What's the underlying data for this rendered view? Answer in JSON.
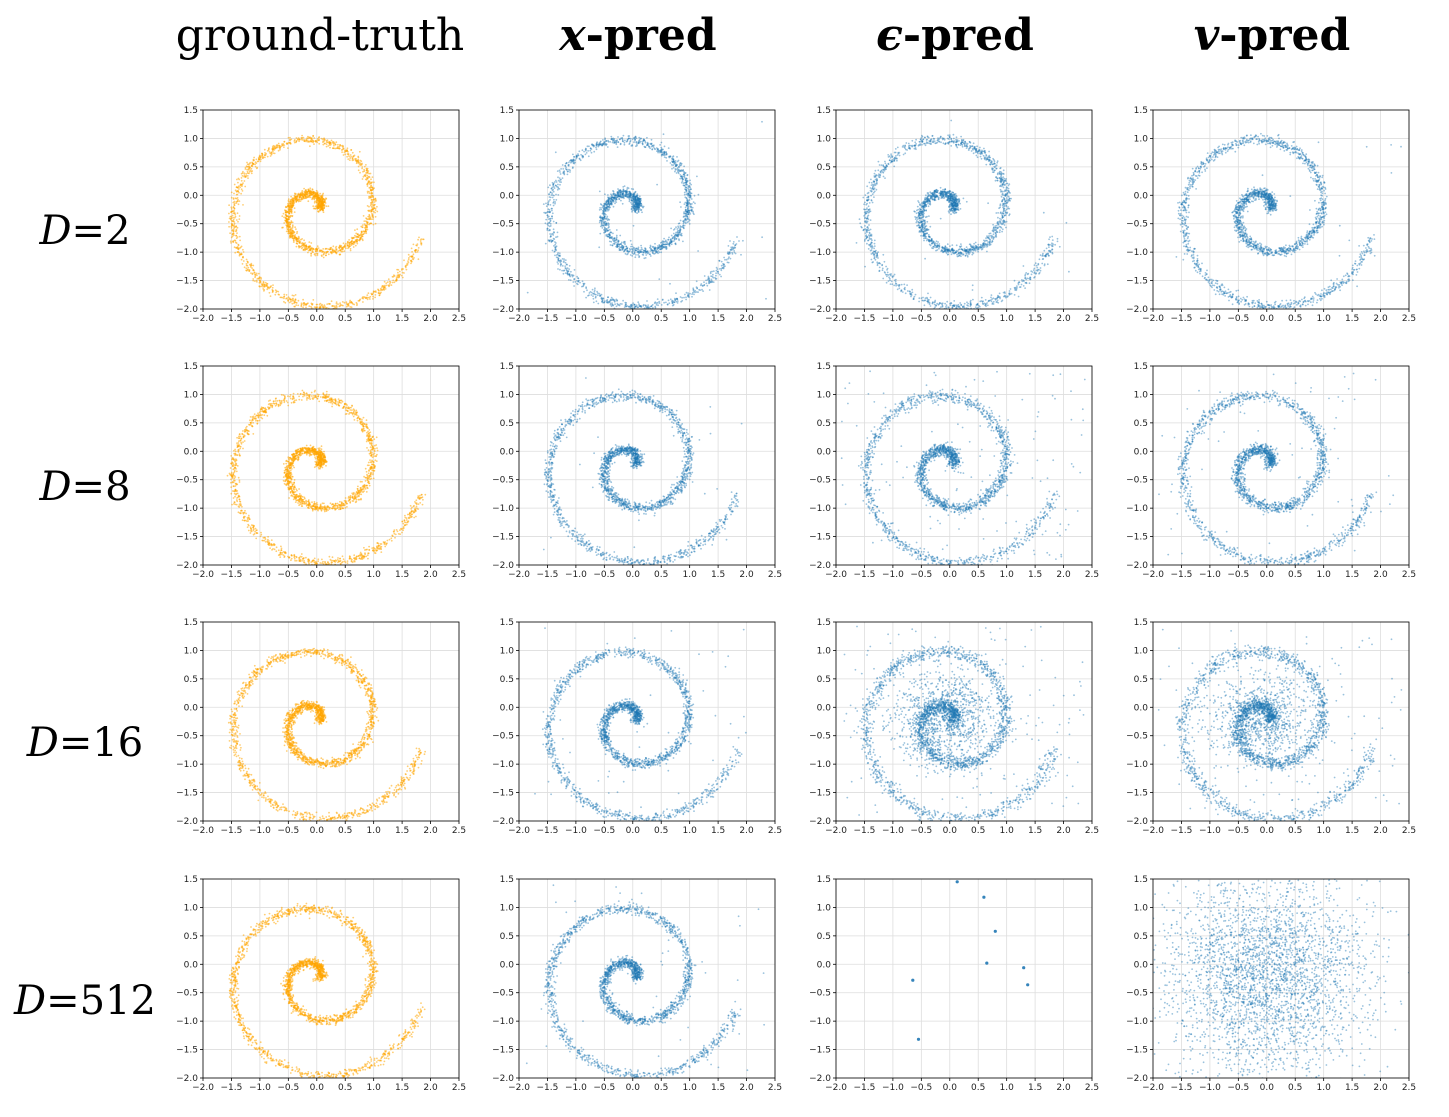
{
  "columns": [
    {
      "title_prefix": "",
      "title_symbol": "ground-truth",
      "title_suffix": ""
    },
    {
      "title_prefix": "",
      "title_symbol": "x",
      "title_suffix": "-pred"
    },
    {
      "title_prefix": "",
      "title_symbol": "ϵ",
      "title_suffix": "-pred"
    },
    {
      "title_prefix": "",
      "title_symbol": "v",
      "title_suffix": "-pred"
    }
  ],
  "rows": [
    {
      "label_var": "D",
      "label_eq": "=2"
    },
    {
      "label_var": "D",
      "label_eq": "=8"
    },
    {
      "label_var": "D",
      "label_eq": "=16"
    },
    {
      "label_var": "D",
      "label_eq": "=512"
    }
  ],
  "colors": {
    "ground_truth": "#FFA500",
    "prediction": "#1f77b4",
    "grid": "#dddddd"
  },
  "chart_data": {
    "type": "scatter",
    "xlim": [
      -2.0,
      2.5
    ],
    "ylim": [
      -2.0,
      1.5
    ],
    "xticks": [
      "−2.0",
      "−1.5",
      "−1.0",
      "−0.5",
      "0.0",
      "0.5",
      "1.0",
      "1.5",
      "2.0",
      "2.5"
    ],
    "yticks": [
      "−2.0",
      "−1.5",
      "−1.0",
      "−0.5",
      "0.0",
      "0.5",
      "1.0",
      "1.5"
    ],
    "grid": true,
    "spiral": {
      "theta_start": 0.3,
      "theta_end": 12.3,
      "r_per_rad": 0.155,
      "phase": 0.0,
      "y_offset": -0.25
    },
    "panels": [
      {
        "row": 0,
        "col": 0,
        "kind": "spiral",
        "noise": 0.04,
        "outliers": 0.0,
        "blob": 0.0,
        "uniform": 0.0
      },
      {
        "row": 0,
        "col": 1,
        "kind": "spiral",
        "noise": 0.045,
        "outliers": 0.01,
        "blob": 0.0,
        "uniform": 0.0
      },
      {
        "row": 0,
        "col": 2,
        "kind": "spiral",
        "noise": 0.045,
        "outliers": 0.01,
        "blob": 0.0,
        "uniform": 0.0
      },
      {
        "row": 0,
        "col": 3,
        "kind": "spiral",
        "noise": 0.045,
        "outliers": 0.01,
        "blob": 0.0,
        "uniform": 0.0
      },
      {
        "row": 1,
        "col": 0,
        "kind": "spiral",
        "noise": 0.04,
        "outliers": 0.0,
        "blob": 0.0,
        "uniform": 0.0
      },
      {
        "row": 1,
        "col": 1,
        "kind": "spiral",
        "noise": 0.045,
        "outliers": 0.01,
        "blob": 0.0,
        "uniform": 0.0
      },
      {
        "row": 1,
        "col": 2,
        "kind": "spiral",
        "noise": 0.05,
        "outliers": 0.06,
        "blob": 0.0,
        "uniform": 0.0
      },
      {
        "row": 1,
        "col": 3,
        "kind": "spiral",
        "noise": 0.05,
        "outliers": 0.03,
        "blob": 0.0,
        "uniform": 0.0
      },
      {
        "row": 2,
        "col": 0,
        "kind": "spiral",
        "noise": 0.04,
        "outliers": 0.0,
        "blob": 0.0,
        "uniform": 0.0
      },
      {
        "row": 2,
        "col": 1,
        "kind": "spiral",
        "noise": 0.045,
        "outliers": 0.02,
        "blob": 0.0,
        "uniform": 0.0
      },
      {
        "row": 2,
        "col": 2,
        "kind": "spiral",
        "noise": 0.06,
        "outliers": 0.08,
        "blob": 0.45,
        "uniform": 0.0
      },
      {
        "row": 2,
        "col": 3,
        "kind": "spiral",
        "noise": 0.06,
        "outliers": 0.06,
        "blob": 0.4,
        "uniform": 0.0
      },
      {
        "row": 3,
        "col": 0,
        "kind": "spiral",
        "noise": 0.04,
        "outliers": 0.0,
        "blob": 0.0,
        "uniform": 0.0
      },
      {
        "row": 3,
        "col": 1,
        "kind": "spiral",
        "noise": 0.045,
        "outliers": 0.02,
        "blob": 0.0,
        "uniform": 0.0
      },
      {
        "row": 3,
        "col": 2,
        "kind": "sparse",
        "points": [
          [
            0.13,
            1.45
          ],
          [
            0.6,
            1.18
          ],
          [
            0.8,
            0.58
          ],
          [
            0.65,
            0.02
          ],
          [
            1.3,
            -0.06
          ],
          [
            1.37,
            -0.36
          ],
          [
            -0.65,
            -0.28
          ],
          [
            -0.55,
            -1.32
          ]
        ]
      },
      {
        "row": 3,
        "col": 3,
        "kind": "gaussian",
        "center": [
          0.0,
          -0.2
        ],
        "std": 0.9
      }
    ]
  }
}
